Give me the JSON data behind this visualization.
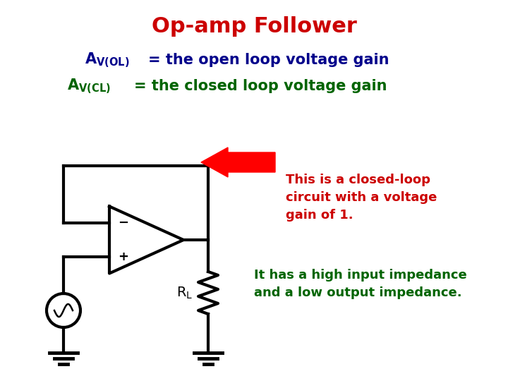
{
  "title": "Op-amp Follower",
  "title_color": "#cc0000",
  "title_fontsize": 22,
  "line1_color": "#00008B",
  "line2_color": "#006400",
  "arrow_text1": "This is a closed-loop",
  "arrow_text2": "circuit with a voltage",
  "arrow_text3": "gain of 1.",
  "arrow_text_color": "#cc0000",
  "note_text1": "It has a high input impedance",
  "note_text2": "and a low output impedance.",
  "note_text_color": "#006400",
  "circuit_color": "#000000",
  "bg_color": "#ffffff"
}
